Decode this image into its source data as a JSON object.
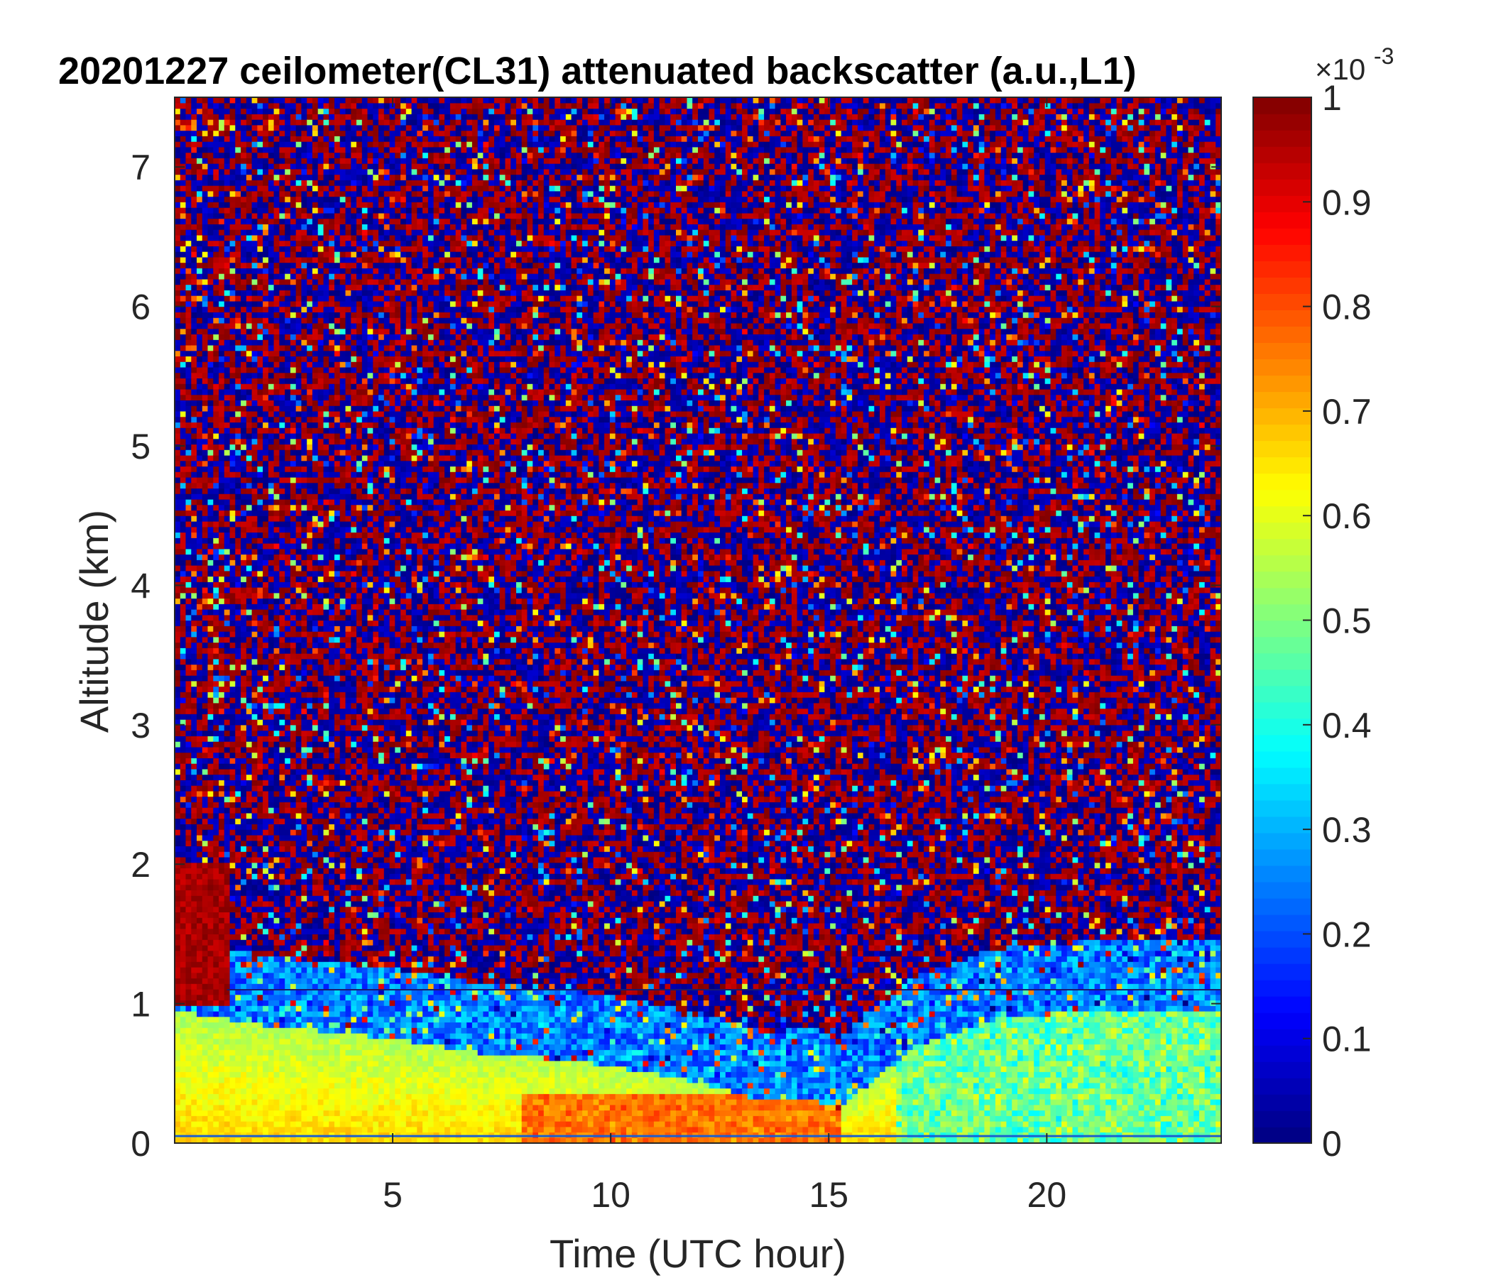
{
  "chart_data": {
    "type": "heatmap",
    "title": "20201227 ceilometer(CL31) attenuated backscatter (a.u.,L1)",
    "xlabel": "Time (UTC hour)",
    "ylabel": "Altitude (km)",
    "xlim": [
      0,
      24
    ],
    "ylim": [
      0,
      7.5
    ],
    "xticks": [
      5,
      10,
      15,
      20
    ],
    "xtick_labels": [
      "5",
      "10",
      "15",
      "20"
    ],
    "yticks": [
      0,
      1,
      2,
      3,
      4,
      5,
      6,
      7
    ],
    "ytick_labels": [
      "0",
      "1",
      "2",
      "3",
      "4",
      "5",
      "6",
      "7"
    ],
    "colorbar": {
      "colormap": "jet",
      "clim": [
        0,
        1
      ],
      "ticks": [
        0,
        0.1,
        0.2,
        0.3,
        0.4,
        0.5,
        0.6,
        0.7,
        0.8,
        0.9,
        1
      ],
      "tick_labels": [
        "0",
        "0.1",
        "0.2",
        "0.3",
        "0.4",
        "0.5",
        "0.6",
        "0.7",
        "0.8",
        "0.9",
        "1"
      ],
      "multiplier_base": "×10",
      "multiplier_exponent": "-3"
    },
    "features": {
      "boundary_layer_top_km": [
        [
          0,
          0.95
        ],
        [
          2,
          0.85
        ],
        [
          5,
          0.75
        ],
        [
          7,
          0.65
        ],
        [
          9,
          0.6
        ],
        [
          11,
          0.5
        ],
        [
          12.5,
          0.4
        ],
        [
          13.5,
          0.3
        ],
        [
          14.5,
          0.32
        ],
        [
          15.2,
          0.25
        ],
        [
          16,
          0.45
        ],
        [
          17,
          0.7
        ],
        [
          19,
          0.9
        ],
        [
          21,
          0.95
        ],
        [
          24,
          0.95
        ]
      ],
      "cloud": {
        "x_range": [
          0,
          1.2
        ],
        "y_range": [
          1.0,
          2.0
        ]
      },
      "horizontal_line_km": 1.1,
      "grid": false
    }
  }
}
